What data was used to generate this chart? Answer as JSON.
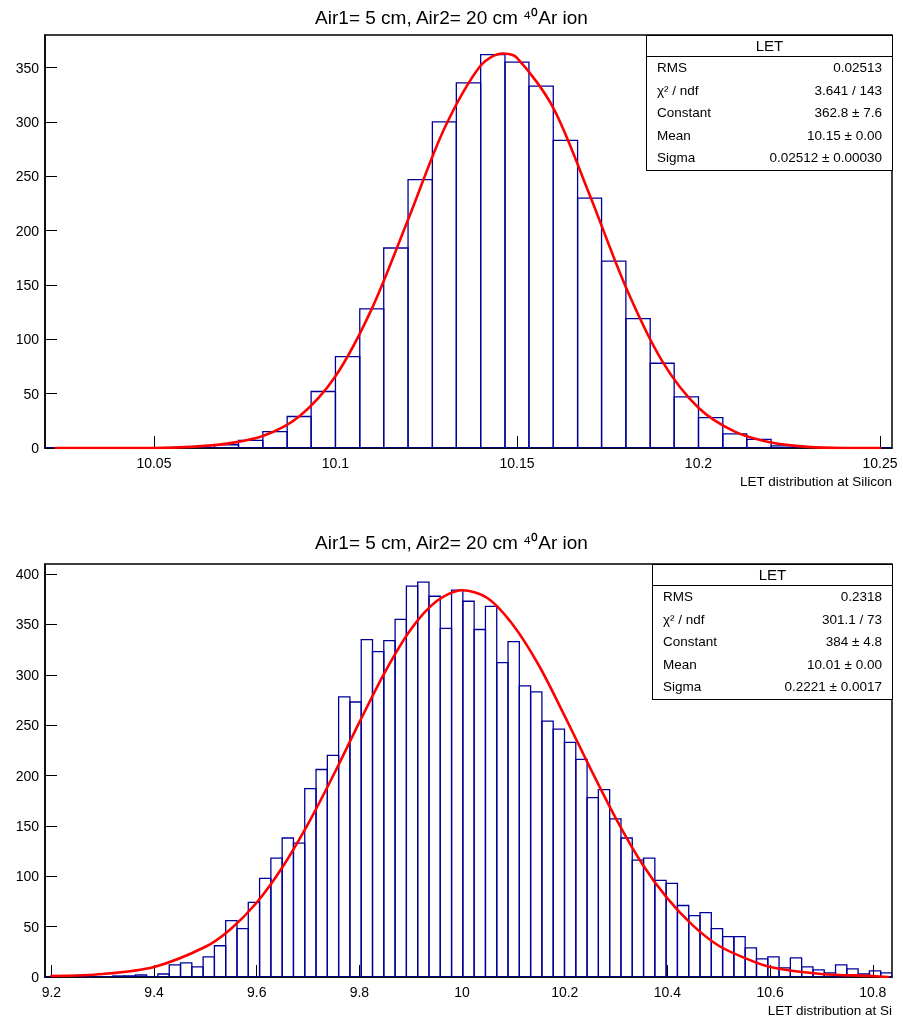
{
  "chart_data": [
    {
      "type": "histogram",
      "title": "Air1= 5 cm, Air2= 20 cm ⁴⁰Ar ion",
      "xlabel": "LET distribution at Silicon",
      "annotations": [
        "LET",
        "RMS",
        "0.02513",
        "χ² / ndf",
        "3.641 / 143",
        "Constant",
        "362.8 ± 7.6",
        "Mean",
        "10.15 ± 0.00",
        "Sigma",
        "0.02512 ± 0.00030"
      ],
      "xlim": [
        10.02,
        10.2533
      ],
      "xticks": [
        10.05,
        10.1,
        10.15,
        10.2,
        10.25
      ],
      "ylim": [
        0,
        380
      ],
      "yticks": [
        0,
        50,
        100,
        150,
        200,
        250,
        300,
        350
      ],
      "series": [
        {
          "type": "histogram",
          "color": "#000099",
          "bins": [
            10.02,
            10.0267,
            10.0333,
            10.04,
            10.0467,
            10.0533,
            10.06,
            10.0667,
            10.0733,
            10.08,
            10.0867,
            10.0933,
            10.1,
            10.1067,
            10.1133,
            10.12,
            10.1267,
            10.1333,
            10.14,
            10.1467,
            10.1533,
            10.16,
            10.1667,
            10.1733,
            10.18,
            10.1867,
            10.1933,
            10.2,
            10.2067,
            10.2133,
            10.22,
            10.2267,
            10.2333,
            10.24,
            10.2467,
            10.2533
          ],
          "values": [
            0,
            0,
            0,
            0,
            0,
            0,
            0,
            3,
            7,
            15,
            29,
            52,
            84,
            128,
            184,
            247,
            300,
            336,
            362,
            355,
            333,
            283,
            230,
            172,
            119,
            78,
            47,
            28,
            13,
            8,
            2,
            0,
            0,
            0,
            0
          ]
        },
        {
          "type": "line",
          "color": "#ff0000",
          "marker": "none",
          "x": [
            10.023,
            10.04,
            10.05,
            10.06,
            10.07,
            10.08,
            10.09,
            10.1,
            10.11,
            10.12,
            10.13,
            10.14,
            10.146,
            10.15,
            10.16,
            10.17,
            10.18,
            10.19,
            10.2,
            10.21,
            10.22,
            10.23,
            10.24,
            10.25
          ],
          "values": [
            0,
            0,
            0,
            1,
            4,
            11,
            29,
            66,
            128,
            210,
            294,
            352,
            363,
            359,
            313,
            233,
            148,
            80,
            37,
            15,
            5,
            1,
            0,
            0
          ]
        }
      ]
    },
    {
      "type": "histogram",
      "title": "Air1= 5 cm, Air2= 20 cm ⁴⁰Ar ion",
      "xlabel": "LET distribution at Si",
      "annotations": [
        "LET",
        "RMS",
        "0.2318",
        "χ² / ndf",
        "301.1 / 73",
        "Constant",
        "384 ± 4.8",
        "Mean",
        "10.01 ± 0.00",
        "Sigma",
        "0.2221 ± 0.0017"
      ],
      "xlim": [
        9.1875,
        10.8375
      ],
      "xticks": [
        9.2,
        9.4,
        9.6,
        9.8,
        10,
        10.2,
        10.4,
        10.6,
        10.8
      ],
      "ylim": [
        0,
        410
      ],
      "yticks": [
        0,
        50,
        100,
        150,
        200,
        250,
        300,
        350,
        400
      ],
      "series": [
        {
          "type": "histogram",
          "color": "#000099",
          "bins": [
            9.1875,
            9.2095,
            9.2315,
            9.2535,
            9.2755,
            9.2975,
            9.3195,
            9.3415,
            9.3635,
            9.3855,
            9.4075,
            9.4295,
            9.4515,
            9.4735,
            9.4955,
            9.5175,
            9.5395,
            9.5615,
            9.5835,
            9.6055,
            9.6275,
            9.6495,
            9.6715,
            9.6935,
            9.7155,
            9.7375,
            9.7595,
            9.7815,
            9.8035,
            9.8255,
            9.8475,
            9.8695,
            9.8915,
            9.9135,
            9.9355,
            9.9575,
            9.9795,
            10.0015,
            10.0235,
            10.0455,
            10.0675,
            10.0895,
            10.1115,
            10.1335,
            10.1555,
            10.1775,
            10.1995,
            10.2215,
            10.2435,
            10.2655,
            10.2875,
            10.3095,
            10.3315,
            10.3535,
            10.3755,
            10.3975,
            10.4195,
            10.4415,
            10.4635,
            10.4855,
            10.5075,
            10.5295,
            10.5515,
            10.5735,
            10.5955,
            10.6175,
            10.6395,
            10.6615,
            10.6835,
            10.7055,
            10.7275,
            10.7495,
            10.7715,
            10.7935,
            10.8155,
            10.8375
          ],
          "values": [
            0,
            0,
            0,
            0,
            0,
            0,
            1,
            1,
            2,
            0,
            3,
            12,
            14,
            10,
            20,
            31,
            56,
            48,
            74,
            98,
            118,
            138,
            133,
            187,
            206,
            220,
            278,
            273,
            335,
            323,
            334,
            355,
            388,
            392,
            378,
            346,
            384,
            373,
            345,
            368,
            312,
            333,
            289,
            283,
            254,
            246,
            233,
            216,
            178,
            186,
            157,
            138,
            116,
            118,
            96,
            93,
            71,
            61,
            64,
            48,
            40,
            40,
            29,
            18,
            20,
            9,
            19,
            10,
            7,
            4,
            12,
            8,
            3,
            6,
            4
          ]
        },
        {
          "type": "line",
          "color": "#ff0000",
          "marker": "none",
          "x": [
            9.2,
            9.3,
            9.4,
            9.5,
            9.55,
            9.6,
            9.65,
            9.7,
            9.75,
            9.8,
            9.85,
            9.9,
            9.95,
            10.0,
            10.05,
            10.1,
            10.15,
            10.2,
            10.25,
            10.3,
            10.35,
            10.4,
            10.45,
            10.5,
            10.55,
            10.6,
            10.7,
            10.8,
            10.83
          ],
          "values": [
            1,
            3,
            10,
            30,
            48,
            74,
            109,
            152,
            201,
            253,
            303,
            345,
            373,
            384,
            376,
            349,
            309,
            259,
            207,
            157,
            113,
            78,
            51,
            31,
            19,
            10,
            3,
            1,
            0
          ]
        }
      ]
    }
  ]
}
